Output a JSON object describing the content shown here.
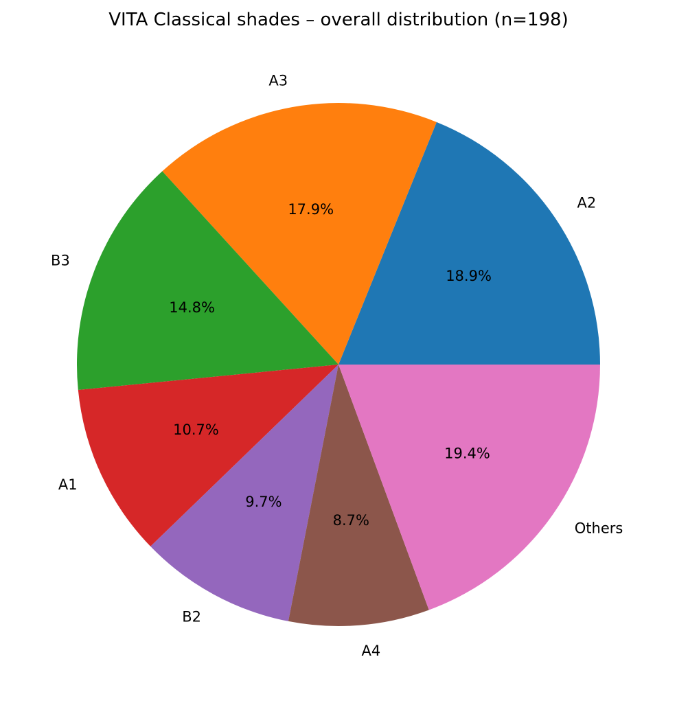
{
  "chart_data": {
    "type": "pie",
    "title": "VITA Classical shades – overall distribution (n=198)",
    "categories": [
      "A2",
      "A3",
      "B3",
      "A1",
      "B2",
      "A4",
      "Others"
    ],
    "values": [
      18.9,
      17.9,
      14.8,
      10.7,
      9.7,
      8.7,
      19.4
    ],
    "value_labels": [
      "18.9%",
      "17.9%",
      "14.8%",
      "10.7%",
      "9.7%",
      "8.7%",
      "19.4%"
    ],
    "colors": [
      "#1f77b4",
      "#ff7f0e",
      "#2ca02c",
      "#d62728",
      "#9467bd",
      "#8c564b",
      "#e377c2"
    ],
    "start_angle_deg": 0,
    "direction": "counterclockwise",
    "legend": "none"
  }
}
